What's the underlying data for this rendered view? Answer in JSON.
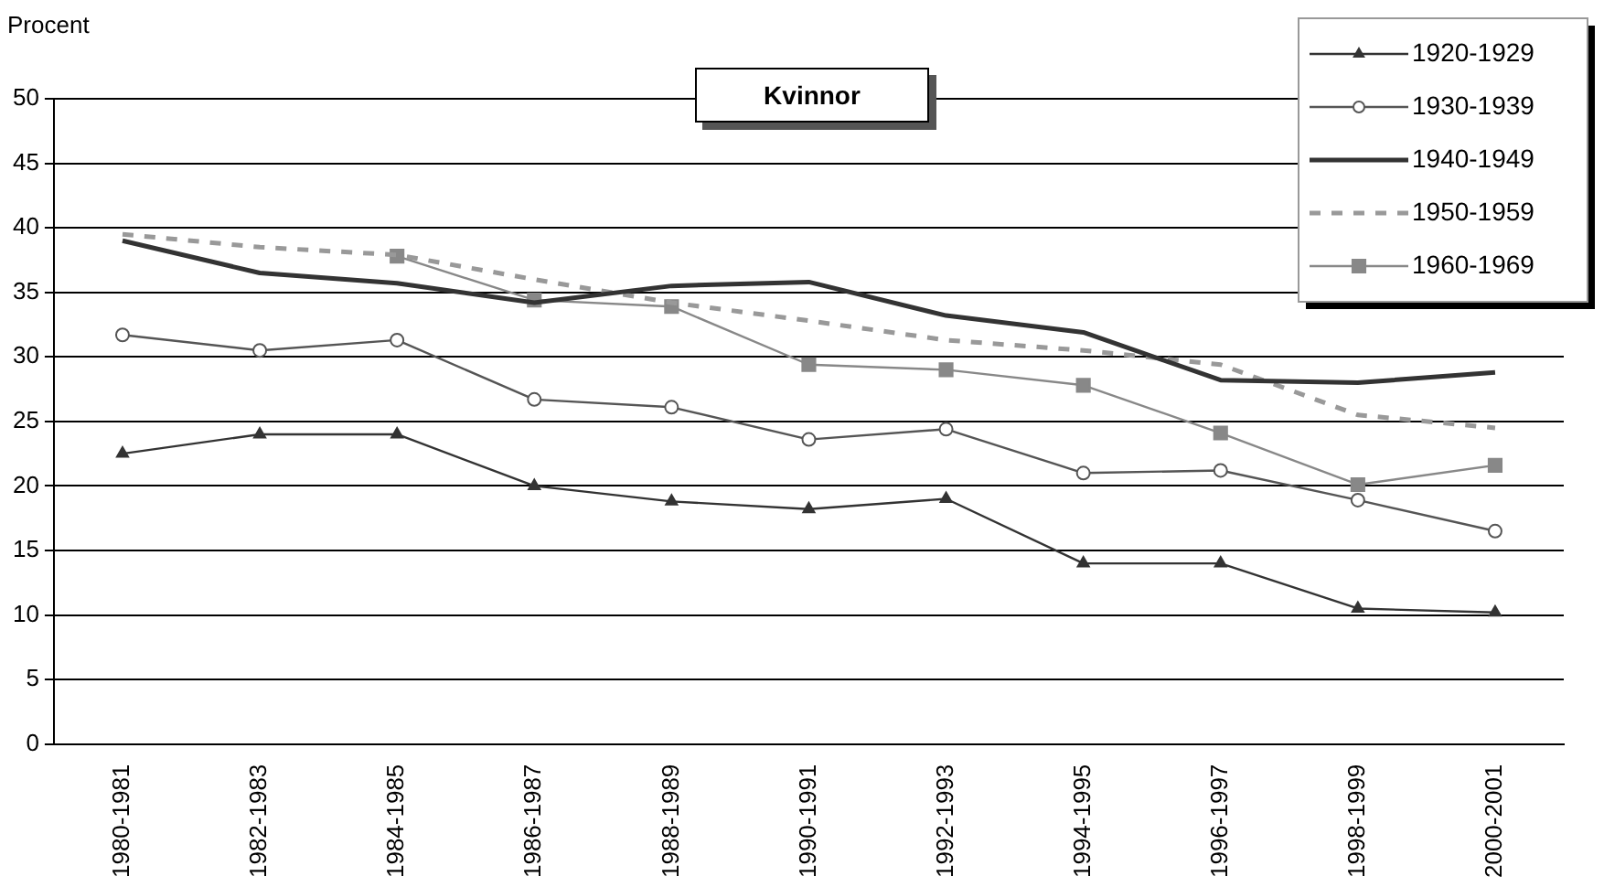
{
  "chart_data": {
    "type": "line",
    "title": "Kvinnor",
    "ylabel": "Procent",
    "categories": [
      "1980-1981",
      "1982-1983",
      "1984-1985",
      "1986-1987",
      "1988-1989",
      "1990-1991",
      "1992-1993",
      "1994-1995",
      "1996-1997",
      "1998-1999",
      "2000-2001"
    ],
    "series": [
      {
        "name": "1920-1929",
        "color": "#333333",
        "marker": "triangle",
        "line_style": "solid",
        "values": [
          22.5,
          24,
          24,
          20,
          18.8,
          18.2,
          19,
          14,
          14,
          10.5,
          10.2
        ]
      },
      {
        "name": "1930-1939",
        "color": "#555555",
        "marker": "circle",
        "line_style": "solid",
        "values": [
          31.7,
          30.5,
          31.3,
          26.7,
          26.1,
          23.6,
          24.4,
          21,
          21.2,
          18.9,
          16.5
        ]
      },
      {
        "name": "1940-1949",
        "color": "#333333",
        "marker": "none",
        "line_style": "solid",
        "values": [
          39,
          36.5,
          35.7,
          34.2,
          35.5,
          35.8,
          33.2,
          31.9,
          28.2,
          28,
          28.8
        ]
      },
      {
        "name": "1950-1959",
        "color": "#999999",
        "marker": "none",
        "line_style": "dashed",
        "values": [
          39.5,
          38.5,
          37.9,
          36,
          34.2,
          32.8,
          31.3,
          30.5,
          29.4,
          25.5,
          24.5
        ]
      },
      {
        "name": "1960-1969",
        "color": "#888888",
        "marker": "square",
        "line_style": "solid",
        "values": [
          null,
          null,
          37.8,
          34.4,
          33.9,
          29.4,
          29,
          27.8,
          24.1,
          20.1,
          21.6
        ]
      }
    ],
    "ylim": [
      0,
      50
    ],
    "yticks": [
      0,
      5,
      10,
      15,
      20,
      25,
      30,
      35,
      40,
      45,
      50
    ],
    "grid": "y",
    "legend": "top right"
  }
}
